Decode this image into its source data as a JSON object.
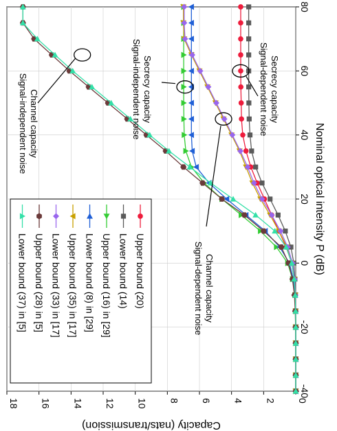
{
  "chart_data": {
    "type": "line",
    "orientation": "rotated-90-clockwise",
    "xlabel": "Nominal optical intensity P (dB)",
    "ylabel": "Capacity (nats/transmission)",
    "x_ticks": [
      "-40",
      "-20",
      "0",
      "20",
      "40",
      "60",
      "80"
    ],
    "y_ticks": [
      "0",
      "2",
      "4",
      "6",
      "8",
      "10",
      "12",
      "14",
      "16",
      "18"
    ],
    "xlim": [
      -40,
      80
    ],
    "ylim": [
      0,
      18
    ],
    "grid": true,
    "legend_position": "bottom-left",
    "series": [
      {
        "name": "Upper bound (20)",
        "color": "#ee1c3c",
        "marker": "circle",
        "x": [
          -40,
          -35,
          -30,
          -25,
          -20,
          -15,
          -10,
          -5,
          0,
          5,
          10,
          15,
          20,
          25,
          30,
          35,
          40,
          45,
          50,
          55,
          60,
          65,
          70,
          75,
          80
        ],
        "y": [
          0,
          0,
          0,
          0,
          0,
          0.01,
          0.03,
          0.1,
          0.25,
          0.6,
          1.05,
          1.5,
          1.95,
          2.4,
          2.8,
          3.1,
          3.3,
          3.38,
          3.4,
          3.42,
          3.43,
          3.43,
          3.43,
          3.43,
          3.43
        ]
      },
      {
        "name": "Lower bound (14)",
        "color": "#5a5a5a",
        "marker": "square",
        "x": [
          -40,
          -35,
          -30,
          -25,
          -20,
          -15,
          -10,
          -5,
          0,
          5,
          10,
          15,
          20,
          25,
          30,
          35,
          40,
          45,
          50,
          55,
          60,
          65,
          70,
          75,
          80
        ],
        "y": [
          0,
          0,
          0,
          0,
          0,
          0,
          0.02,
          0.05,
          0.12,
          0.3,
          0.65,
          1.1,
          1.6,
          2.1,
          2.5,
          2.75,
          2.85,
          2.9,
          2.92,
          2.93,
          2.93,
          2.93,
          2.93,
          2.93,
          2.93
        ]
      },
      {
        "name": "Upper bound (16) in [29]",
        "color": "#33cc33",
        "marker": "triangle-right",
        "x": [
          -40,
          -35,
          -30,
          -25,
          -20,
          -15,
          -10,
          -5,
          0,
          5,
          10,
          15,
          20,
          25,
          30,
          35,
          40,
          45,
          50,
          55,
          60,
          65,
          70,
          75,
          80
        ],
        "y": [
          0,
          0,
          0,
          0,
          0,
          0.01,
          0.05,
          0.2,
          0.5,
          1.2,
          2.2,
          3.4,
          4.6,
          5.7,
          6.5,
          6.85,
          6.95,
          6.97,
          6.98,
          6.98,
          6.98,
          6.98,
          6.98,
          6.98,
          6.98
        ]
      },
      {
        "name": "Lower bound (8) in [29]",
        "color": "#1f5fd6",
        "marker": "triangle-left",
        "x": [
          -40,
          -35,
          -30,
          -25,
          -20,
          -15,
          -10,
          -5,
          0,
          5,
          10,
          15,
          20,
          25,
          30,
          35,
          40,
          45,
          50,
          55,
          60,
          65,
          70,
          75,
          80
        ],
        "y": [
          0,
          0,
          0,
          0,
          0,
          0.01,
          0.04,
          0.15,
          0.4,
          1.0,
          1.9,
          3.1,
          4.3,
          5.4,
          6.2,
          6.45,
          6.5,
          6.5,
          6.5,
          6.5,
          6.5,
          6.5,
          6.5,
          6.5,
          6.5
        ]
      },
      {
        "name": "Upper bound (35) in [17]",
        "color": "#c8a000",
        "marker": "triangle-down",
        "x": [
          -40,
          -35,
          -30,
          -25,
          -20,
          -15,
          -10,
          -5,
          0,
          5,
          10,
          15,
          20,
          25,
          30,
          35,
          40,
          45,
          50,
          55,
          60,
          65,
          70,
          75,
          80
        ],
        "y": [
          0,
          0,
          0,
          0,
          0,
          0.01,
          0.02,
          0.1,
          0.25,
          0.55,
          1.05,
          1.6,
          2.2,
          2.7,
          3.1,
          3.5,
          4.0,
          4.5,
          5.0,
          5.5,
          6.0,
          6.5,
          6.95,
          7.0,
          7.0
        ]
      },
      {
        "name": "Lower bound (33) in [17]",
        "color": "#9966ee",
        "marker": "diamond",
        "x": [
          -40,
          -35,
          -30,
          -25,
          -20,
          -15,
          -10,
          -5,
          0,
          5,
          10,
          15,
          20,
          25,
          30,
          35,
          40,
          45,
          50,
          55,
          60,
          65,
          70,
          75,
          80
        ],
        "y": [
          0,
          0,
          0,
          0,
          0,
          0.01,
          0.02,
          0.08,
          0.2,
          0.5,
          0.95,
          1.5,
          2.1,
          2.6,
          3.0,
          3.45,
          3.95,
          4.45,
          4.95,
          5.45,
          5.95,
          6.45,
          6.9,
          6.95,
          6.95
        ]
      },
      {
        "name": "Upper bound (28) in [5]",
        "color": "#6b3a3a",
        "marker": "hexagon",
        "x": [
          -40,
          -35,
          -30,
          -25,
          -20,
          -15,
          -10,
          -5,
          0,
          5,
          10,
          15,
          20,
          25,
          30,
          35,
          40,
          45,
          50,
          55,
          60,
          65,
          70,
          75,
          80
        ],
        "y": [
          0,
          0,
          0,
          0,
          0.01,
          0.03,
          0.08,
          0.2,
          0.45,
          0.9,
          2.0,
          3.2,
          4.6,
          5.8,
          7.0,
          8.1,
          9.3,
          10.5,
          11.7,
          12.9,
          14.1,
          15.2,
          16.3,
          17.0,
          17.0
        ]
      },
      {
        "name": "Lower bound (37) in [5]",
        "color": "#33e0a8",
        "marker": "triangle-up",
        "x": [
          -40,
          -35,
          -30,
          -25,
          -20,
          -15,
          -10,
          -5,
          0,
          5,
          10,
          15,
          20,
          25,
          30,
          35,
          40,
          45,
          50,
          55,
          60,
          65,
          70,
          75,
          80
        ],
        "y": [
          0,
          0,
          0,
          0,
          0,
          0.01,
          0.03,
          0.1,
          0.25,
          0.6,
          1.3,
          2.5,
          3.9,
          5.3,
          6.6,
          7.9,
          9.1,
          10.3,
          11.5,
          12.7,
          13.9,
          15.0,
          16.1,
          17.0,
          17.0
        ]
      }
    ],
    "annotations": [
      {
        "lines": [
          "Channel capacity",
          "Signal-independent noise"
        ]
      },
      {
        "lines": [
          "Secrecy capacity",
          "Signal-independent noise"
        ]
      },
      {
        "lines": [
          "Secrecy capacity",
          "Signal-dependent noise"
        ]
      },
      {
        "lines": [
          "Channel capacity",
          "Signal-dependent noise"
        ]
      }
    ]
  }
}
